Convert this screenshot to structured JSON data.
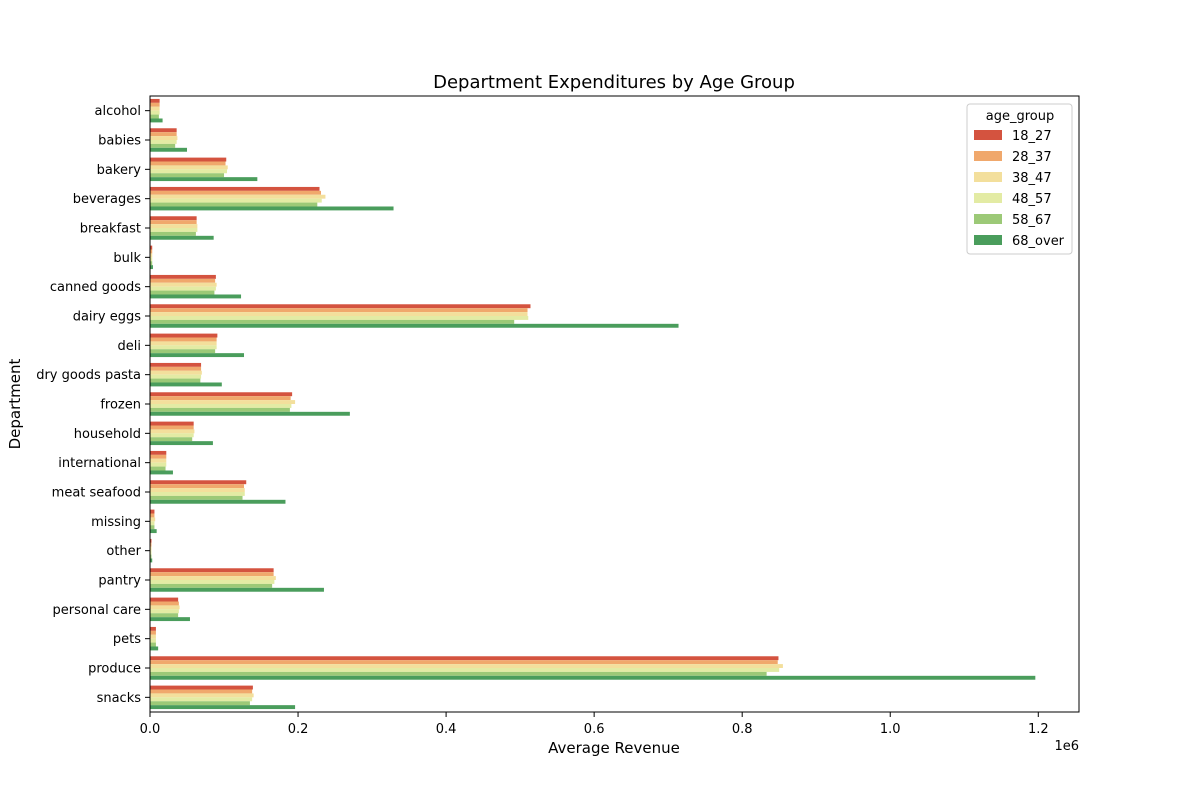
{
  "chart_data": {
    "type": "bar",
    "orientation": "horizontal",
    "title": "Department Expenditures by Age Group",
    "xlabel": "Average Revenue",
    "ylabel": "Department",
    "x_scale_label": "1e6",
    "xlim": [
      0,
      1.255
    ],
    "x_ticks": [
      0.0,
      0.2,
      0.4,
      0.6,
      0.8,
      1.0,
      1.2
    ],
    "x_tick_labels": [
      "0.0",
      "0.2",
      "0.4",
      "0.6",
      "0.8",
      "1.0",
      "1.2"
    ],
    "grid": false,
    "legend": {
      "title": "age_group",
      "placement": "top-right"
    },
    "categories": [
      "alcohol",
      "babies",
      "bakery",
      "beverages",
      "breakfast",
      "bulk",
      "canned goods",
      "dairy eggs",
      "deli",
      "dry goods pasta",
      "frozen",
      "household",
      "international",
      "meat seafood",
      "missing",
      "other",
      "pantry",
      "personal care",
      "pets",
      "produce",
      "snacks"
    ],
    "series": [
      {
        "name": "18_27",
        "color": "#d4533f",
        "values": [
          0.013,
          0.036,
          0.103,
          0.229,
          0.063,
          0.003,
          0.089,
          0.514,
          0.091,
          0.069,
          0.192,
          0.059,
          0.022,
          0.13,
          0.006,
          0.002,
          0.167,
          0.038,
          0.008,
          0.849,
          0.139
        ]
      },
      {
        "name": "28_37",
        "color": "#f0a86c",
        "values": [
          0.013,
          0.036,
          0.102,
          0.231,
          0.063,
          0.003,
          0.088,
          0.51,
          0.09,
          0.069,
          0.19,
          0.059,
          0.022,
          0.127,
          0.006,
          0.002,
          0.167,
          0.039,
          0.008,
          0.848,
          0.138
        ]
      },
      {
        "name": "38_47",
        "color": "#f3df9c",
        "values": [
          0.013,
          0.037,
          0.105,
          0.237,
          0.064,
          0.003,
          0.09,
          0.51,
          0.09,
          0.07,
          0.196,
          0.06,
          0.022,
          0.128,
          0.007,
          0.002,
          0.17,
          0.04,
          0.008,
          0.855,
          0.14
        ]
      },
      {
        "name": "48_57",
        "color": "#e3eba4",
        "values": [
          0.013,
          0.036,
          0.104,
          0.232,
          0.064,
          0.003,
          0.089,
          0.511,
          0.09,
          0.069,
          0.191,
          0.059,
          0.022,
          0.128,
          0.006,
          0.002,
          0.168,
          0.039,
          0.008,
          0.85,
          0.138
        ]
      },
      {
        "name": "58_67",
        "color": "#9cc977",
        "values": [
          0.012,
          0.034,
          0.1,
          0.226,
          0.062,
          0.003,
          0.087,
          0.492,
          0.088,
          0.068,
          0.189,
          0.057,
          0.021,
          0.125,
          0.006,
          0.002,
          0.165,
          0.038,
          0.008,
          0.833,
          0.135
        ]
      },
      {
        "name": "68_over",
        "color": "#4a9d5c",
        "values": [
          0.017,
          0.05,
          0.145,
          0.329,
          0.086,
          0.004,
          0.123,
          0.714,
          0.127,
          0.097,
          0.27,
          0.085,
          0.031,
          0.183,
          0.009,
          0.003,
          0.235,
          0.054,
          0.011,
          1.196,
          0.196
        ]
      }
    ]
  }
}
